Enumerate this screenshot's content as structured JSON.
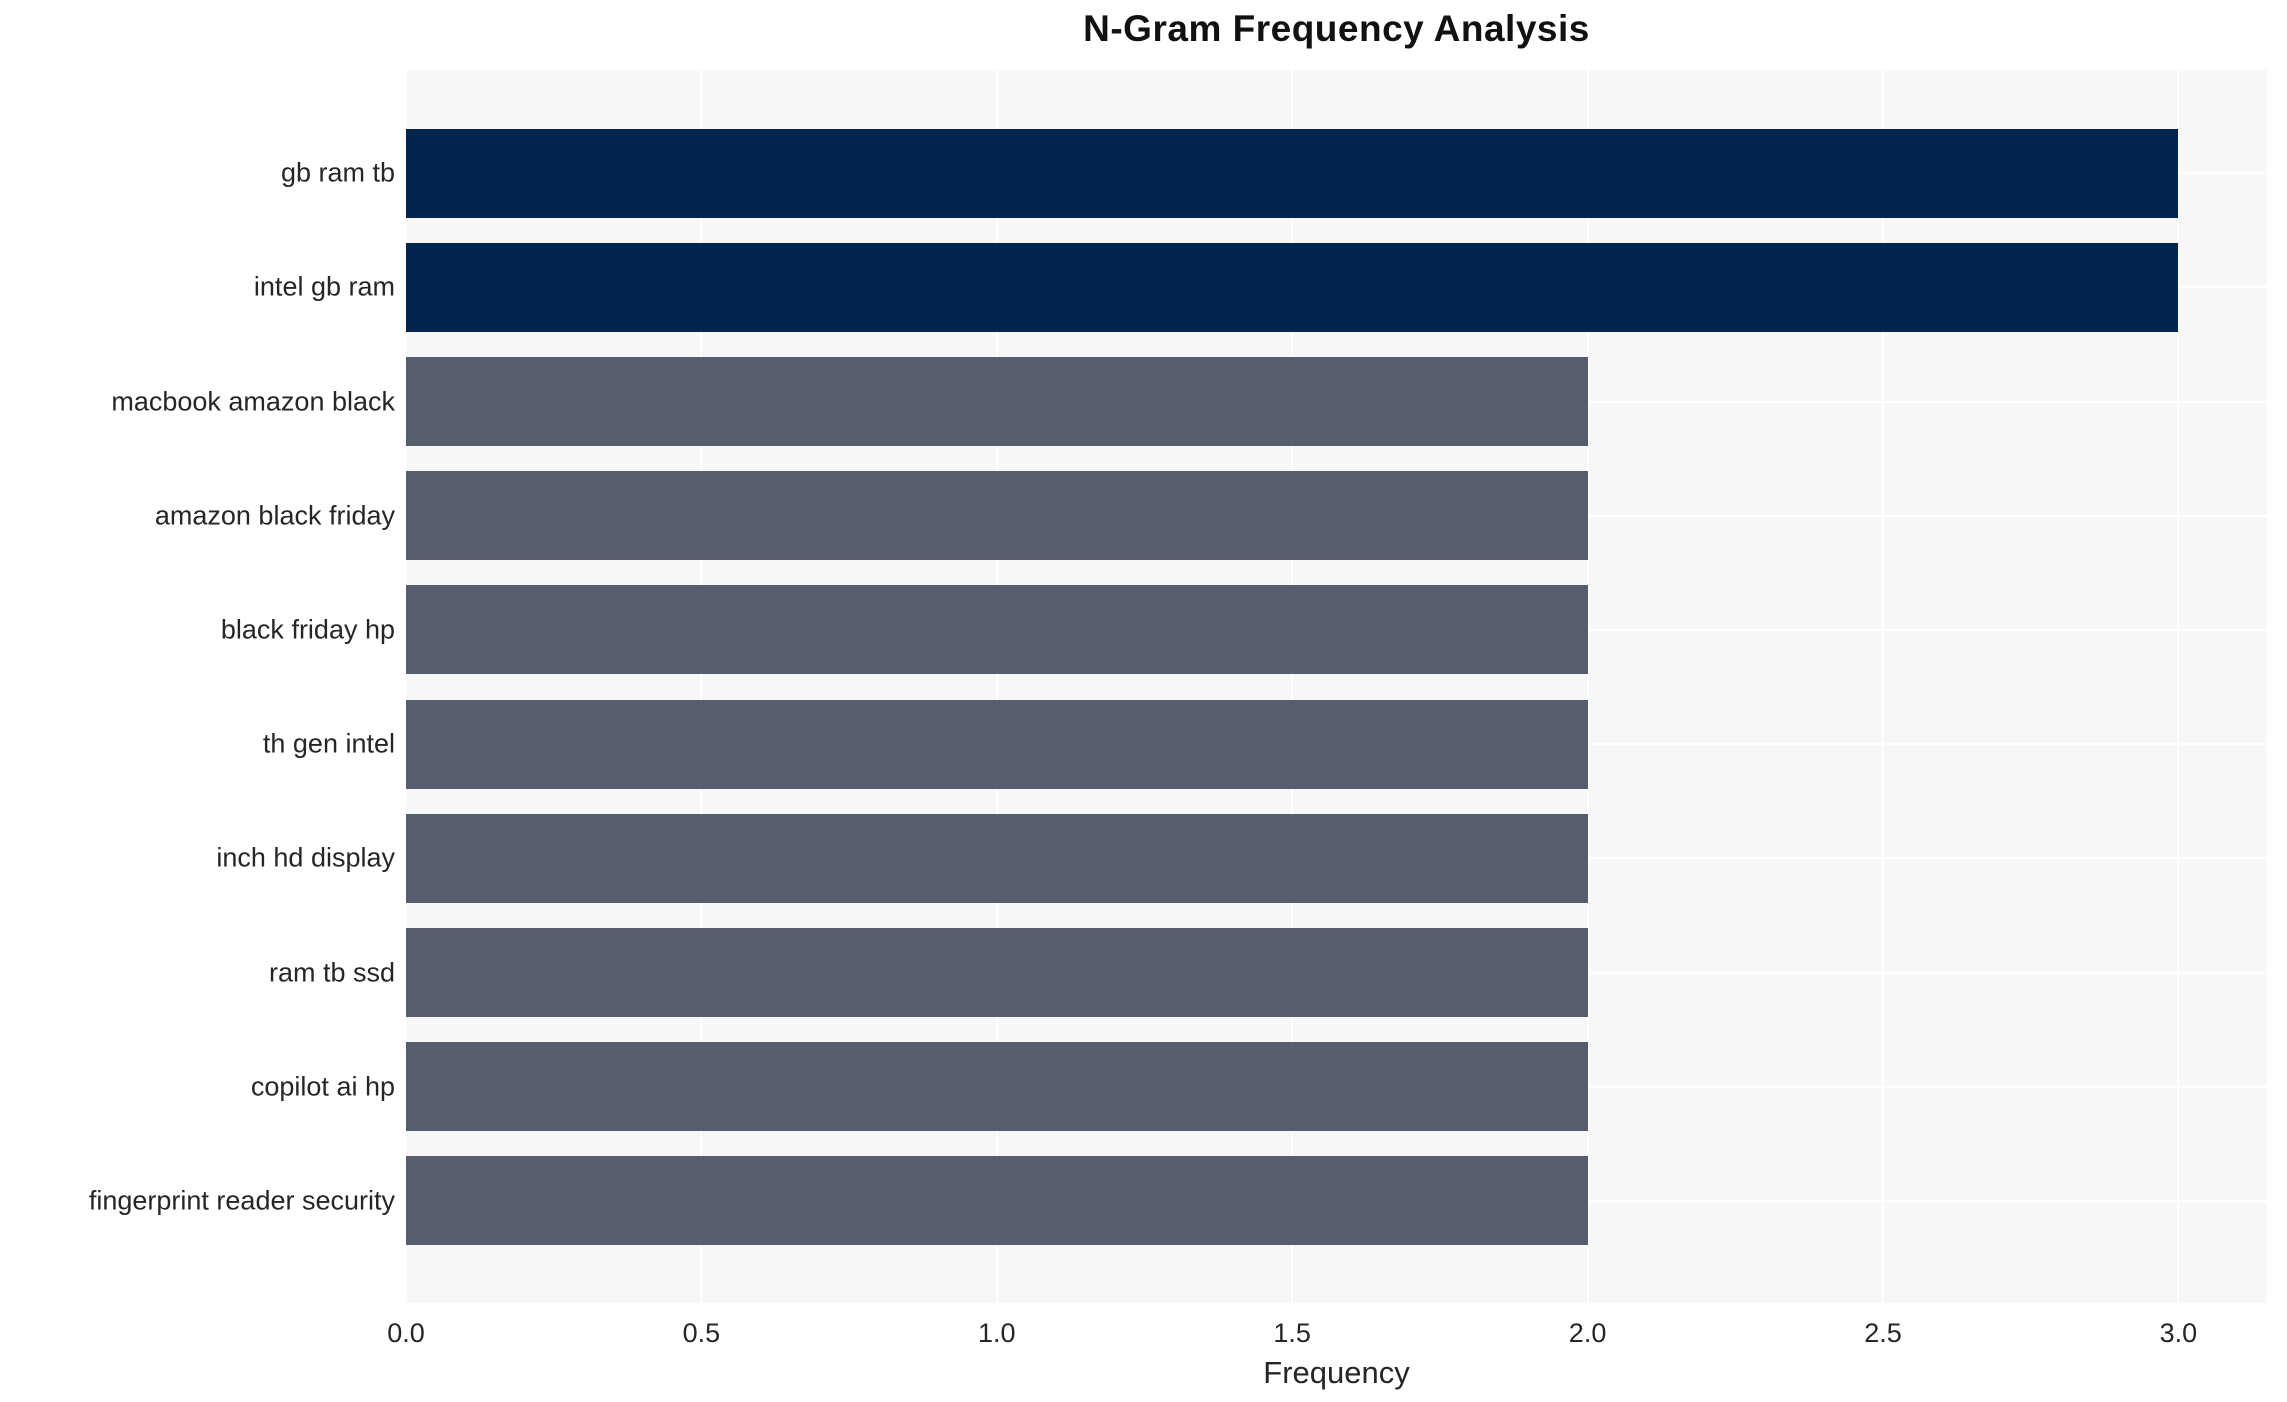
{
  "chart_data": {
    "type": "bar",
    "orientation": "horizontal",
    "title": "N-Gram Frequency Analysis",
    "xlabel": "Frequency",
    "ylabel": "",
    "categories": [
      "gb ram tb",
      "intel gb ram",
      "macbook amazon black",
      "amazon black friday",
      "black friday hp",
      "th gen intel",
      "inch hd display",
      "ram tb ssd",
      "copilot ai hp",
      "fingerprint reader security"
    ],
    "values": [
      3,
      3,
      2,
      2,
      2,
      2,
      2,
      2,
      2,
      2
    ],
    "bar_colors": [
      "#02254d",
      "#02254d",
      "#565d6c",
      "#565d6c",
      "#565d6c",
      "#565d6c",
      "#565d6c",
      "#565d6c",
      "#565d6c",
      "#565d6c"
    ],
    "xlim": [
      0,
      3.15
    ],
    "xtick_labels": [
      "0.0",
      "0.5",
      "1.0",
      "1.5",
      "2.0",
      "2.5",
      "3.0"
    ],
    "xtick_values": [
      0,
      0.5,
      1,
      1.5,
      2,
      2.5,
      3
    ],
    "grid": true,
    "legend_position": "none",
    "colors": {
      "accent_high": "#02254d",
      "accent_default": "#565d6c",
      "plot_background": "#f7f7f8",
      "figure_background": "#ffffff",
      "grid_color": "#ffffff",
      "text_color": "#262626",
      "title_color": "#111111"
    }
  }
}
